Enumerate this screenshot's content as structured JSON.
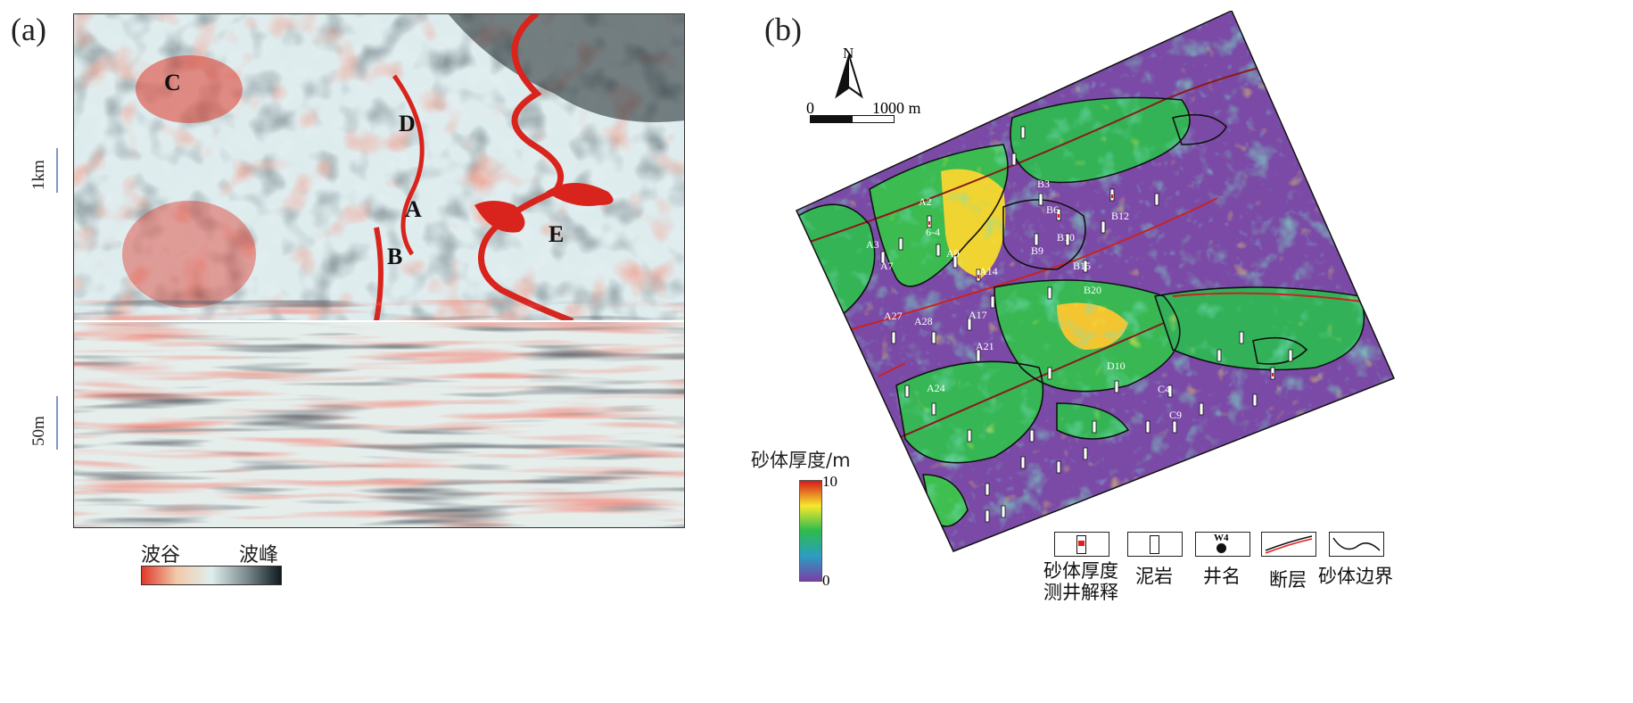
{
  "panel_a": {
    "label": "(a)",
    "scale_map": "1km",
    "scale_section": "50m",
    "features": [
      "A",
      "B",
      "C",
      "D",
      "E"
    ],
    "colorbar": {
      "left": "波谷",
      "right": "波峰",
      "colors": [
        "#e0392b",
        "#f2c9a8",
        "#dfeeee",
        "#7d8c8e",
        "#0f1b1f"
      ]
    }
  },
  "panel_b": {
    "label": "(b)",
    "north": "N",
    "scale_start": "0",
    "scale_end": "1000 m",
    "well_labels": [
      "A2",
      "A3",
      "A7",
      "A9",
      "6-4",
      "A14",
      "A17",
      "A21",
      "A24",
      "A27",
      "A28",
      "B3",
      "B6",
      "B9",
      "B10",
      "B12",
      "B15",
      "B20",
      "C4",
      "C9",
      "D10"
    ],
    "colorbar": {
      "title": "砂体厚度/m",
      "max": "10",
      "min": "0",
      "colors": [
        "#d7191c",
        "#f6e82c",
        "#2dbb4e",
        "#2a9fc2",
        "#7a3fa8"
      ]
    },
    "legend": [
      {
        "icon": "sand-well-icon",
        "label_line1": "砂体厚度",
        "label_line2": "测井解释"
      },
      {
        "icon": "mudstone-well-icon",
        "label_line1": "泥岩",
        "label_line2": ""
      },
      {
        "icon": "well-name-icon",
        "icon_text": "W4",
        "label_line1": "井名",
        "label_line2": ""
      },
      {
        "icon": "fault-icon",
        "label_line1": "断层",
        "label_line2": ""
      },
      {
        "icon": "sand-boundary-icon",
        "label_line1": "砂体边界",
        "label_line2": ""
      }
    ]
  }
}
